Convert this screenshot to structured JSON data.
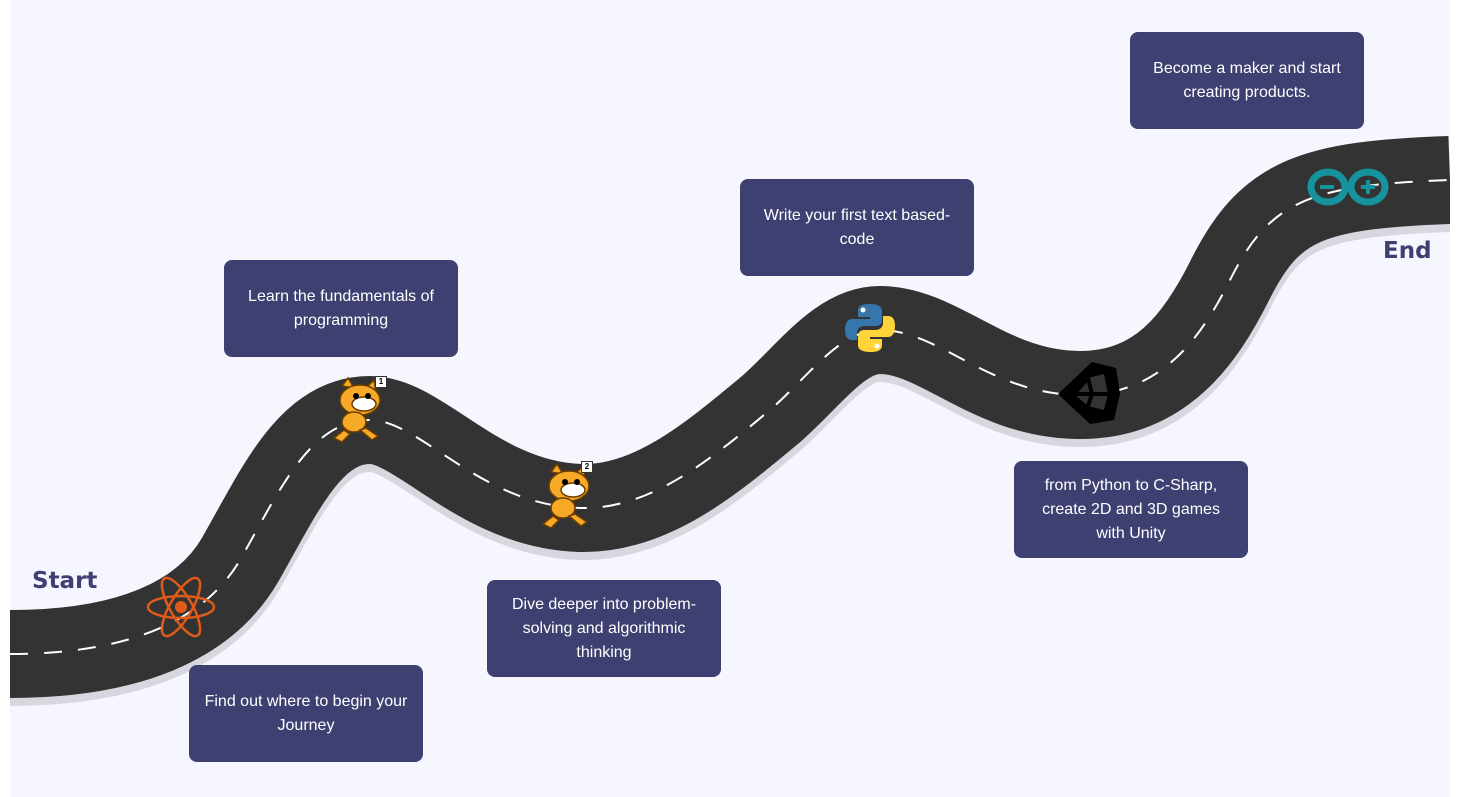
{
  "labels": {
    "start": "Start",
    "end": "End"
  },
  "steps": [
    {
      "text": "Find out where to begin your Journey",
      "icon": "atom-icon"
    },
    {
      "text": "Learn the fundamentals of programming",
      "icon": "scratch-cat-icon",
      "badge": "1"
    },
    {
      "text": "Dive deeper into problem-solving and algorithmic thinking",
      "icon": "scratch-cat-icon",
      "badge": "2"
    },
    {
      "text": "Write your first text based-code",
      "icon": "python-icon"
    },
    {
      "text": "from Python to C-Sharp, create 2D and 3D games with Unity",
      "icon": "unity-icon"
    },
    {
      "text": "Become a maker and start creating products.",
      "icon": "arduino-icon"
    }
  ],
  "colors": {
    "background": "#f5f6fe",
    "road": "#333333",
    "card": "#3d4070",
    "label": "#3d4070"
  }
}
